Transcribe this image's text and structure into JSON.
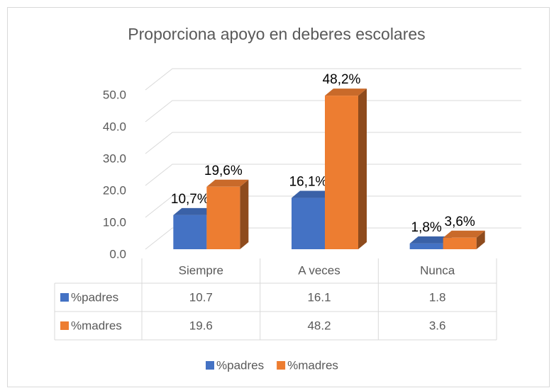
{
  "chart_data": {
    "type": "bar3d",
    "title": "Proporciona apoyo en deberes escolares",
    "categories": [
      "Siempre",
      "A veces",
      "Nunca"
    ],
    "series": [
      {
        "name": "%padres",
        "color": "#4472c4",
        "values": [
          10.7,
          16.1,
          1.8
        ],
        "value_labels": [
          "10,7%",
          "16,1%",
          "1,8%"
        ]
      },
      {
        "name": "%madres",
        "color": "#ed7d31",
        "values": [
          19.6,
          48.2,
          3.6
        ],
        "value_labels": [
          "19,6%",
          "48,2%",
          "3,6%"
        ]
      }
    ],
    "ylim": [
      0,
      50
    ],
    "yticks": [
      {
        "value": 0,
        "label": "0.0"
      },
      {
        "value": 10,
        "label": "10.0"
      },
      {
        "value": 20,
        "label": "20.0"
      },
      {
        "value": 30,
        "label": "30.0"
      },
      {
        "value": 40,
        "label": "40.0"
      },
      {
        "value": 50,
        "label": "50.0"
      }
    ],
    "grid": true,
    "legend": "bottom",
    "data_table": true
  }
}
